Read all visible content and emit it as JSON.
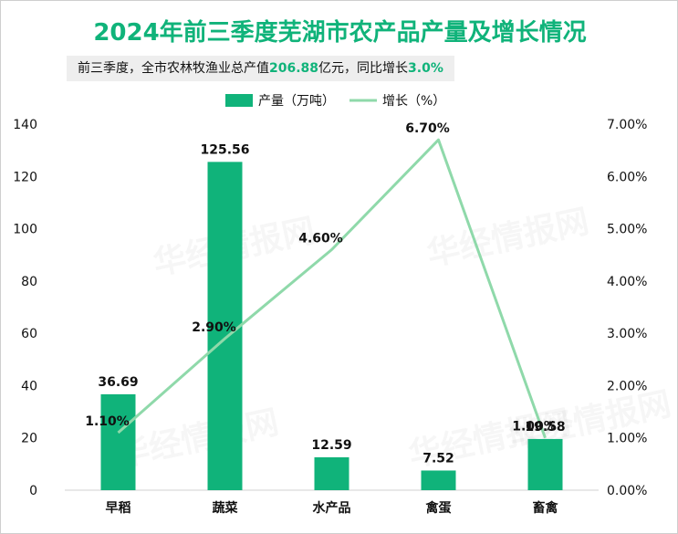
{
  "title": "2024年前三季度芜湖市农产品产量及增长情况",
  "subtitle": {
    "text_before": "前三季度，全市农林牧渔业总产值",
    "value1": "206.88",
    "text_middle": "亿元，同比增长",
    "value2": "3.0%"
  },
  "watermark": "华经情报网",
  "chart_data": {
    "type": "bar+line",
    "categories": [
      "早稻",
      "蔬菜",
      "水产品",
      "禽蛋",
      "畜禽"
    ],
    "series": [
      {
        "name": "产量（万吨）",
        "type": "bar",
        "axis": "left",
        "values": [
          36.69,
          125.56,
          12.59,
          7.52,
          19.58
        ],
        "labels": [
          "36.69",
          "125.56",
          "12.59",
          "7.52",
          "19.58"
        ],
        "color": "#10b37a"
      },
      {
        "name": "增长（%）",
        "type": "line",
        "axis": "right",
        "values": [
          1.1,
          2.9,
          4.6,
          6.7,
          1.0
        ],
        "labels": [
          "1.10%",
          "2.90%",
          "4.60%",
          "6.70%",
          "1.00%"
        ],
        "color": "#8fd9aa"
      }
    ],
    "y_left": {
      "min": 0,
      "max": 140,
      "ticks": [
        "0",
        "20",
        "40",
        "60",
        "80",
        "100",
        "120",
        "140"
      ]
    },
    "y_right": {
      "min": 0,
      "max": 7,
      "ticks": [
        "0.00%",
        "1.00%",
        "2.00%",
        "3.00%",
        "4.00%",
        "5.00%",
        "6.00%",
        "7.00%"
      ]
    },
    "legend": "top-center",
    "grid": false
  }
}
